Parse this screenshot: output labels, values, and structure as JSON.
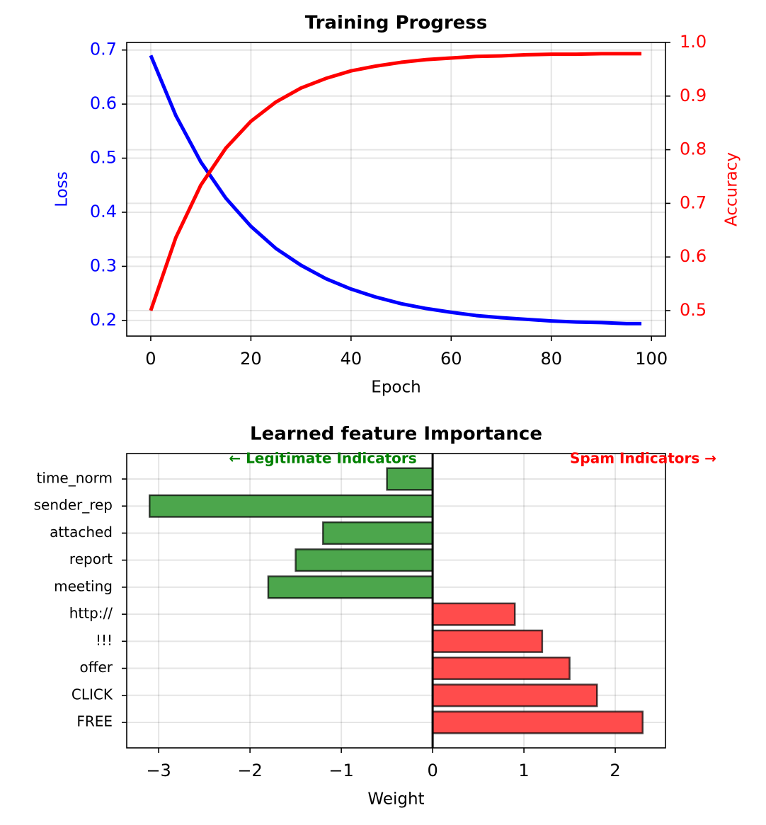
{
  "chart_data": [
    {
      "type": "line",
      "title": "Training Progress",
      "x_label": "Epoch",
      "y_label": "Loss",
      "y2_label": "Accuracy",
      "x": [
        0,
        5,
        10,
        15,
        20,
        25,
        30,
        35,
        40,
        45,
        50,
        55,
        60,
        65,
        70,
        75,
        80,
        85,
        90,
        95,
        98
      ],
      "series": [
        {
          "name": "Loss",
          "color": "#0000ff",
          "values": [
            0.69,
            0.579,
            0.493,
            0.426,
            0.374,
            0.333,
            0.302,
            0.277,
            0.258,
            0.243,
            0.231,
            0.222,
            0.215,
            0.209,
            0.205,
            0.202,
            0.199,
            0.197,
            0.196,
            0.194,
            0.194
          ]
        },
        {
          "name": "Accuracy",
          "color": "#ff0000",
          "axis": "y2",
          "values": [
            0.5,
            0.636,
            0.734,
            0.803,
            0.853,
            0.889,
            0.915,
            0.933,
            0.947,
            0.956,
            0.963,
            0.968,
            0.971,
            0.974,
            0.975,
            0.977,
            0.978,
            0.978,
            0.979,
            0.979,
            0.979
          ]
        }
      ],
      "xlim": [
        -4.8,
        102.8
      ],
      "xticks": [
        0,
        20,
        40,
        60,
        80,
        100
      ],
      "ylim": [
        0.171,
        0.714
      ],
      "yticks": [
        0.2,
        0.3,
        0.4,
        0.5,
        0.6,
        0.7
      ],
      "y2lim": [
        0.4525,
        1.0
      ],
      "y2ticks": [
        0.5,
        0.6,
        0.7,
        0.8,
        0.9,
        {
          "value": 1.0,
          "label": "1.0"
        }
      ],
      "grid": true
    },
    {
      "type": "barh",
      "title": "Learned feature Importance",
      "x_label": "Weight",
      "categories": [
        "time_norm",
        "sender_rep",
        "attached",
        "report",
        "meeting",
        "http://",
        "!!!",
        "offer",
        "CLICK",
        "FREE"
      ],
      "values": [
        -0.5,
        -3.1,
        -1.2,
        -1.5,
        -1.8,
        0.9,
        1.2,
        1.5,
        1.8,
        2.3
      ],
      "colors": [
        "#4ca64c",
        "#4ca64c",
        "#4ca64c",
        "#4ca64c",
        "#4ca64c",
        "#ff4c4c",
        "#ff4c4c",
        "#ff4c4c",
        "#ff4c4c",
        "#ff4c4c"
      ],
      "xlim": [
        -3.35,
        2.55
      ],
      "xticks": [
        {
          "value": -3,
          "label": "−3"
        },
        {
          "value": -2,
          "label": "−2"
        },
        {
          "value": -1,
          "label": "−1"
        },
        0,
        1,
        2
      ],
      "annotations": [
        {
          "text": "← Legitimate Indicators",
          "color": "#008000"
        },
        {
          "text": "Spam Indicators →",
          "color": "#ff0000"
        }
      ],
      "grid": true
    }
  ]
}
